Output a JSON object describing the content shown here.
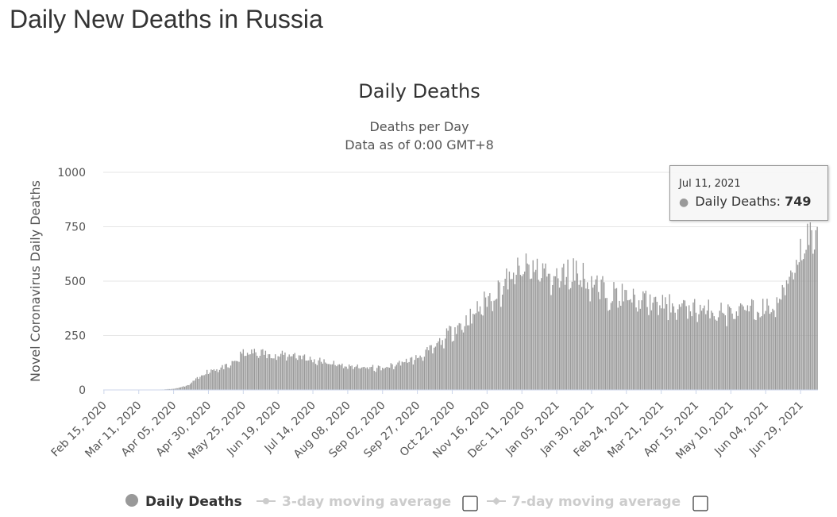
{
  "page": {
    "title": "Daily New Deaths in Russia"
  },
  "chart_data": {
    "type": "bar",
    "title": "Daily Deaths",
    "subtitle_lines": [
      "Deaths per Day",
      "Data as of 0:00 GMT+8"
    ],
    "xlabel": "",
    "ylabel": "Novel Coronavirus Daily Deaths",
    "ylim": [
      0,
      1000
    ],
    "y_ticks": [
      0,
      250,
      500,
      750,
      1000
    ],
    "x_start_date": "2020-02-15",
    "x_end_date": "2021-07-11",
    "x_tick_labels": [
      "Feb 15, 2020",
      "Mar 11, 2020",
      "Apr 05, 2020",
      "Apr 30, 2020",
      "May 25, 2020",
      "Jun 19, 2020",
      "Jul 14, 2020",
      "Aug 08, 2020",
      "Sep 02, 2020",
      "Sep 27, 2020",
      "Oct 22, 2020",
      "Nov 16, 2020",
      "Dec 11, 2020",
      "Jan 05, 2021",
      "Jan 30, 2021",
      "Feb 24, 2021",
      "Mar 21, 2021",
      "Apr 15, 2021",
      "May 10, 2021",
      "Jun 04, 2021",
      "Jun 29, 2021"
    ],
    "grid": true,
    "bar_color": "#999999",
    "gridline_color": "#e6e6e6",
    "series": [
      {
        "name": "Daily Deaths",
        "checkpoints": [
          [
            "2020-02-15",
            0
          ],
          [
            "2020-03-11",
            0
          ],
          [
            "2020-03-25",
            1
          ],
          [
            "2020-04-05",
            5
          ],
          [
            "2020-04-15",
            20
          ],
          [
            "2020-04-30",
            90
          ],
          [
            "2020-05-15",
            110
          ],
          [
            "2020-05-25",
            170
          ],
          [
            "2020-06-05",
            175
          ],
          [
            "2020-06-19",
            160
          ],
          [
            "2020-07-01",
            165
          ],
          [
            "2020-07-14",
            140
          ],
          [
            "2020-08-08",
            110
          ],
          [
            "2020-09-02",
            100
          ],
          [
            "2020-09-27",
            150
          ],
          [
            "2020-10-10",
            200
          ],
          [
            "2020-10-22",
            280
          ],
          [
            "2020-11-01",
            320
          ],
          [
            "2020-11-16",
            420
          ],
          [
            "2020-12-01",
            510
          ],
          [
            "2020-12-11",
            560
          ],
          [
            "2020-12-20",
            570
          ],
          [
            "2021-01-05",
            520
          ],
          [
            "2021-01-18",
            560
          ],
          [
            "2021-01-30",
            500
          ],
          [
            "2021-02-10",
            460
          ],
          [
            "2021-02-24",
            430
          ],
          [
            "2021-03-21",
            400
          ],
          [
            "2021-04-15",
            380
          ],
          [
            "2021-05-10",
            360
          ],
          [
            "2021-05-25",
            375
          ],
          [
            "2021-06-04",
            380
          ],
          [
            "2021-06-12",
            390
          ],
          [
            "2021-06-20",
            520
          ],
          [
            "2021-06-29",
            650
          ],
          [
            "2021-07-05",
            720
          ],
          [
            "2021-07-11",
            749
          ]
        ]
      }
    ],
    "legend": {
      "placement": "bottom-center",
      "items": [
        {
          "label": "Daily Deaths",
          "active": true
        },
        {
          "label": "3-day moving average",
          "active": false
        },
        {
          "label": "7-day moving average",
          "active": false
        }
      ]
    },
    "tooltip": {
      "date": "Jul 11, 2021",
      "series_label": "Daily Deaths:",
      "value": "749"
    }
  }
}
